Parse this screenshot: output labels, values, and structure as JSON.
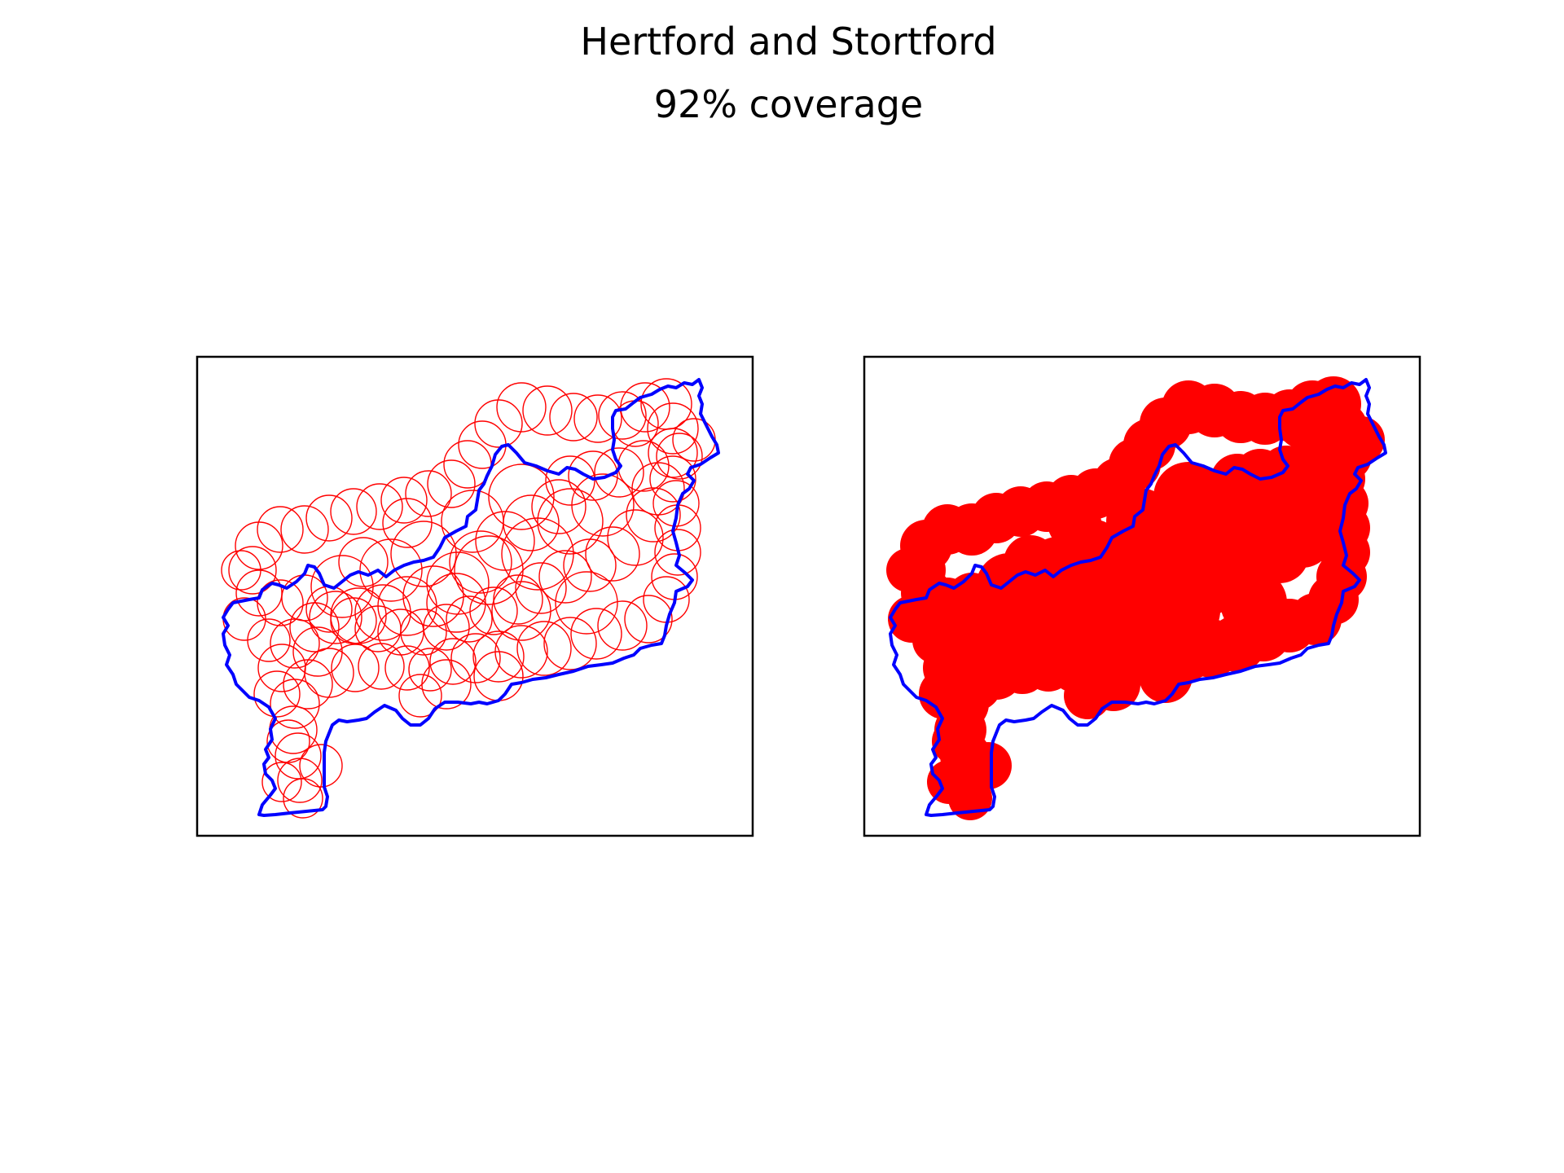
{
  "figure": {
    "title": "Hertford and Stortford",
    "subtitle": "92% coverage"
  },
  "colors": {
    "boundary": "#0000ff",
    "coverage": "#ff0000",
    "frame": "#000000",
    "background": "#ffffff"
  },
  "panels": [
    {
      "id": "left",
      "style": "outline-circles"
    },
    {
      "id": "right",
      "style": "filled-union"
    }
  ]
}
